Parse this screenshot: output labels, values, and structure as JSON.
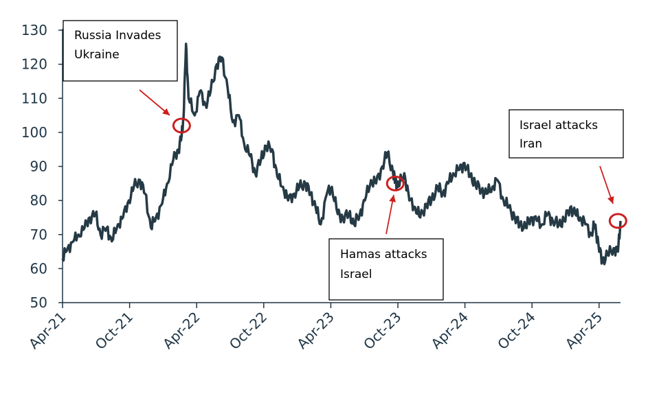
{
  "chart_data": {
    "type": "line",
    "title": "",
    "xlabel": "",
    "ylabel": "",
    "ylim": [
      50,
      130
    ],
    "yticks": [
      50,
      60,
      70,
      80,
      90,
      100,
      110,
      120,
      130
    ],
    "x_range": [
      "2021-04-01",
      "2025-06-20"
    ],
    "x_tick_labels": [
      "Apr-21",
      "Oct-21",
      "Apr-22",
      "Oct-22",
      "Apr-23",
      "Oct-23",
      "Apr-24",
      "Oct-24",
      "Apr-25"
    ],
    "grid": false,
    "line_color": "#253a45",
    "series": [
      {
        "x": [
          "2021-04-01",
          "2021-04-15",
          "2021-05-01",
          "2021-05-15",
          "2021-06-01",
          "2021-06-15",
          "2021-07-01",
          "2021-07-15",
          "2021-08-01",
          "2021-08-15",
          "2021-09-01",
          "2021-09-15",
          "2021-10-01",
          "2021-10-15",
          "2021-11-01",
          "2021-11-15",
          "2021-12-01",
          "2021-12-15",
          "2022-01-01",
          "2022-01-15",
          "2022-02-01",
          "2022-02-15",
          "2022-02-24",
          "2022-03-01",
          "2022-03-08",
          "2022-03-15",
          "2022-04-01",
          "2022-04-15",
          "2022-05-01",
          "2022-05-15",
          "2022-06-01",
          "2022-06-15",
          "2022-07-01",
          "2022-07-15",
          "2022-08-01",
          "2022-08-15",
          "2022-09-01",
          "2022-09-15",
          "2022-10-01",
          "2022-10-15",
          "2022-11-01",
          "2022-11-15",
          "2022-12-01",
          "2022-12-15",
          "2023-01-01",
          "2023-01-15",
          "2023-02-01",
          "2023-02-15",
          "2023-03-01",
          "2023-03-15",
          "2023-04-01",
          "2023-04-15",
          "2023-05-01",
          "2023-05-15",
          "2023-06-01",
          "2023-06-15",
          "2023-07-01",
          "2023-07-15",
          "2023-08-01",
          "2023-08-15",
          "2023-09-01",
          "2023-09-15",
          "2023-10-01",
          "2023-10-07",
          "2023-10-15",
          "2023-11-01",
          "2023-11-15",
          "2023-12-01",
          "2023-12-15",
          "2024-01-01",
          "2024-01-15",
          "2024-02-01",
          "2024-02-15",
          "2024-03-01",
          "2024-03-15",
          "2024-04-01",
          "2024-04-15",
          "2024-05-01",
          "2024-05-15",
          "2024-06-01",
          "2024-06-15",
          "2024-07-01",
          "2024-07-15",
          "2024-08-01",
          "2024-08-15",
          "2024-09-01",
          "2024-09-15",
          "2024-10-01",
          "2024-10-15",
          "2024-11-01",
          "2024-11-15",
          "2024-12-01",
          "2024-12-15",
          "2025-01-01",
          "2025-01-15",
          "2025-02-01",
          "2025-02-15",
          "2025-03-01",
          "2025-03-15",
          "2025-04-01",
          "2025-04-10",
          "2025-04-20",
          "2025-05-01",
          "2025-05-15",
          "2025-06-01",
          "2025-06-13",
          "2025-06-20"
        ],
        "values": [
          63,
          66,
          68,
          70,
          72,
          75,
          76,
          70,
          72,
          68,
          73,
          75,
          80,
          84,
          86,
          82,
          72,
          75,
          79,
          85,
          92,
          95,
          99,
          104,
          126,
          110,
          105,
          112,
          108,
          112,
          120,
          122,
          113,
          103,
          105,
          97,
          93,
          88,
          92,
          96,
          95,
          87,
          84,
          80,
          82,
          84,
          85,
          82,
          78,
          73,
          82,
          84,
          76,
          75,
          76,
          73,
          76,
          80,
          86,
          85,
          90,
          94,
          88,
          86,
          84,
          88,
          80,
          78,
          75,
          79,
          80,
          84,
          82,
          85,
          88,
          89,
          91,
          87,
          85,
          83,
          82,
          84,
          86,
          80,
          78,
          75,
          73,
          72,
          75,
          74,
          73,
          76,
          74,
          73,
          74,
          78,
          76,
          75,
          73,
          70,
          73,
          67,
          62,
          64,
          66,
          65,
          74
        ]
      }
    ],
    "annotations": [
      {
        "lines": [
          "Russia Invades",
          "Ukraine"
        ],
        "date": "2022-02-24",
        "value": 102
      },
      {
        "lines": [
          "Hamas attacks",
          "Israel"
        ],
        "date": "2023-10-07",
        "value": 85
      },
      {
        "lines": [
          "Israel attacks",
          "Iran"
        ],
        "date": "2025-06-13",
        "value": 74
      }
    ],
    "annotation_color": "#cc1f1f"
  }
}
